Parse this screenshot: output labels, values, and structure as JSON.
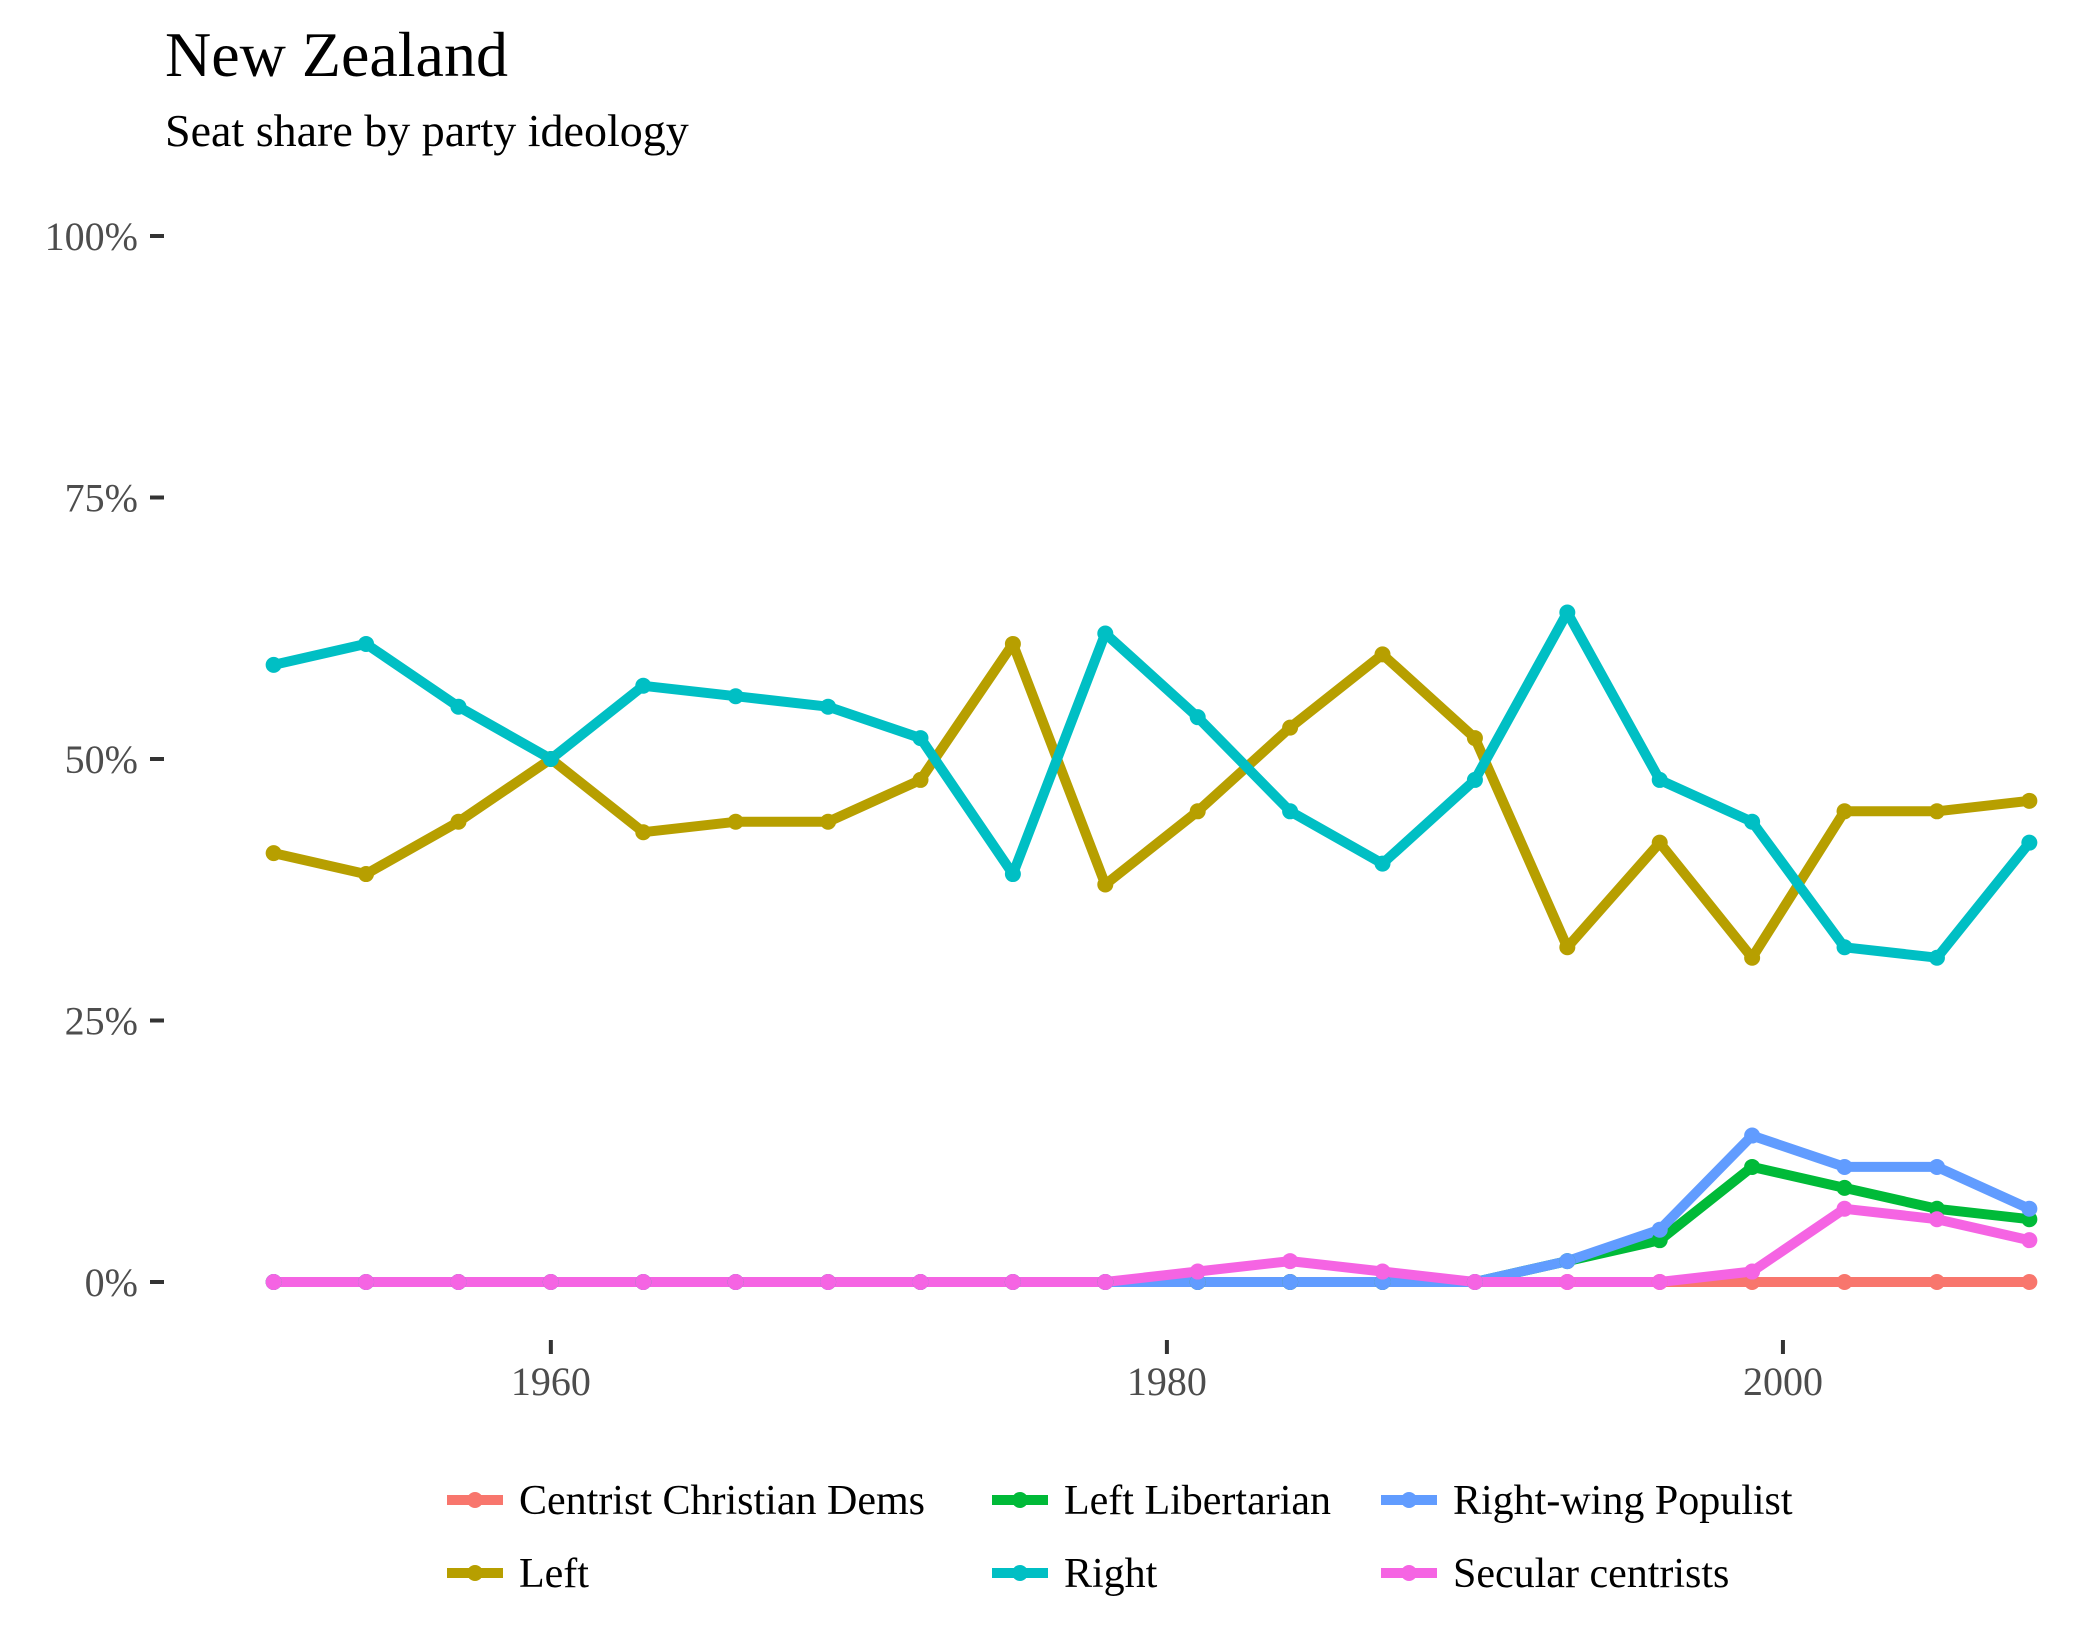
{
  "chart_data": {
    "type": "line",
    "title": "New Zealand",
    "subtitle": "Seat share by party ideology",
    "xlabel": "",
    "ylabel": "",
    "x": [
      1951,
      1954,
      1957,
      1960,
      1963,
      1966,
      1969,
      1972,
      1975,
      1978,
      1981,
      1984,
      1987,
      1990,
      1993,
      1996,
      1999,
      2002,
      2005,
      2008
    ],
    "xlim": [
      1950.2,
      2008.8
    ],
    "ylim": [
      -0.05,
      1.0
    ],
    "x_ticks": [
      1960,
      1980,
      2000
    ],
    "x_tick_labels": [
      "1960",
      "1980",
      "2000"
    ],
    "y_ticks": [
      0,
      0.25,
      0.5,
      0.75,
      1.0
    ],
    "y_tick_labels": [
      "0%",
      "25%",
      "50%",
      "75%",
      "100%"
    ],
    "grid": false,
    "legend_position": "bottom",
    "series": [
      {
        "name": "Centrist Christian Dems",
        "color": "#F8766D",
        "values": [
          0,
          0,
          0,
          0,
          0,
          0,
          0,
          0,
          0,
          0,
          0,
          0,
          0,
          0,
          0,
          0,
          0,
          0,
          0,
          0
        ]
      },
      {
        "name": "Left",
        "color": "#B79F00",
        "values": [
          0.41,
          0.39,
          0.44,
          0.5,
          0.43,
          0.44,
          0.44,
          0.48,
          0.61,
          0.38,
          0.45,
          0.53,
          0.6,
          0.52,
          0.32,
          0.42,
          0.31,
          0.45,
          0.45,
          0.46
        ]
      },
      {
        "name": "Left Libertarian",
        "color": "#00BA38",
        "values": [
          0,
          0,
          0,
          0,
          0,
          0,
          0,
          0,
          0,
          0,
          0,
          0,
          0,
          0,
          0.02,
          0.04,
          0.11,
          0.09,
          0.07,
          0.06
        ]
      },
      {
        "name": "Right",
        "color": "#00BFC4",
        "values": [
          0.59,
          0.61,
          0.55,
          0.5,
          0.57,
          0.56,
          0.55,
          0.52,
          0.39,
          0.62,
          0.54,
          0.45,
          0.4,
          0.48,
          0.64,
          0.48,
          0.44,
          0.32,
          0.31,
          0.42
        ]
      },
      {
        "name": "Right-wing Populist",
        "color": "#619CFF",
        "values": [
          0,
          0,
          0,
          0,
          0,
          0,
          0,
          0,
          0,
          0,
          0,
          0,
          0,
          0,
          0.02,
          0.05,
          0.14,
          0.11,
          0.11,
          0.07
        ]
      },
      {
        "name": "Secular centrists",
        "color": "#F564E3",
        "values": [
          0,
          0,
          0,
          0,
          0,
          0,
          0,
          0,
          0,
          0,
          0.01,
          0.02,
          0.01,
          0,
          0,
          0,
          0.01,
          0.07,
          0.06,
          0.04
        ]
      }
    ]
  }
}
